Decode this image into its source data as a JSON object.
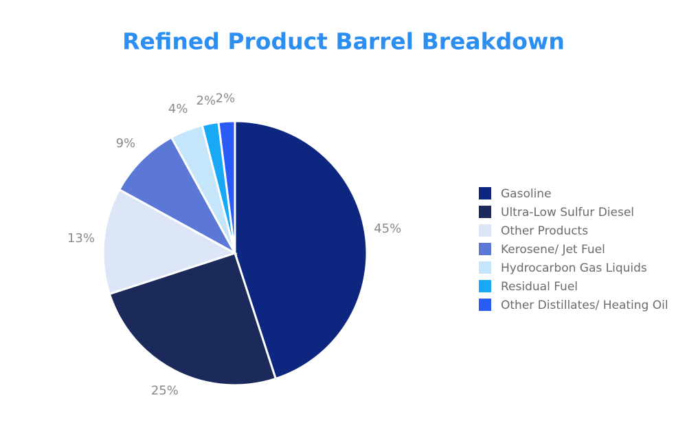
{
  "chart_data": {
    "type": "pie",
    "title": "Refined Product Barrel Breakdown",
    "categories": [
      "Gasoline",
      "Ultra-Low Sulfur Diesel",
      "Other Products",
      "Kerosene/ Jet Fuel",
      "Hydrocarbon Gas Liquids",
      "Residual Fuel",
      "Other Distillates/ Heating Oil"
    ],
    "values": [
      45,
      25,
      13,
      9,
      4,
      2,
      2
    ],
    "value_labels": [
      "45%",
      "25%",
      "13%",
      "9%",
      "4%",
      "2%",
      "2%"
    ],
    "colors": [
      "#0d2680",
      "#1b2a5a",
      "#dde6f7",
      "#5b78d6",
      "#c5e5fb",
      "#18a8f5",
      "#2a5cf5"
    ],
    "legend": "right"
  }
}
